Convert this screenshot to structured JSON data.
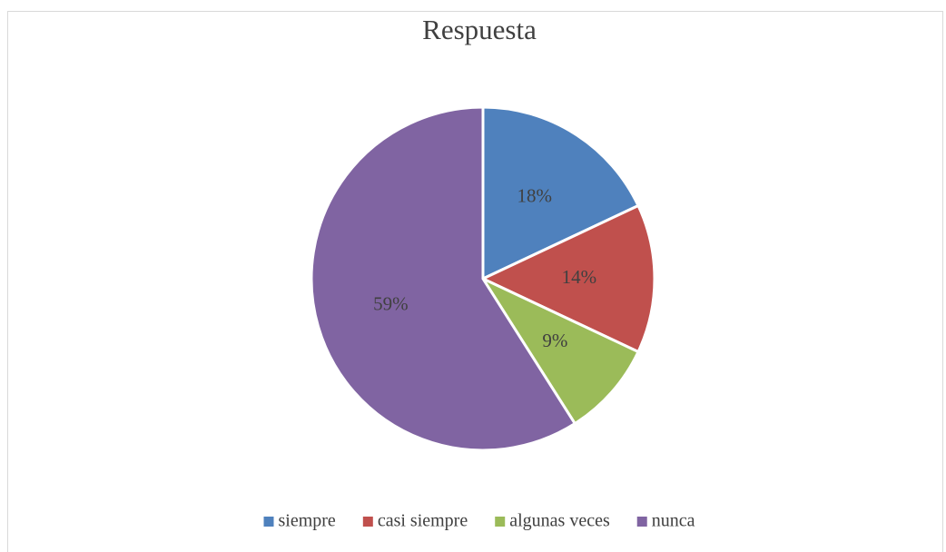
{
  "chart_data": {
    "type": "pie",
    "title": "Respuesta",
    "categories": [
      "siempre",
      "casi siempre",
      "algunas veces",
      "nunca"
    ],
    "values": [
      18,
      14,
      9,
      59
    ],
    "value_labels": [
      "18%",
      "14%",
      "9%",
      "59%"
    ],
    "colors": [
      "#4f81bd",
      "#c0504d",
      "#9bbb59",
      "#8064a2"
    ],
    "legend": "bottom"
  }
}
